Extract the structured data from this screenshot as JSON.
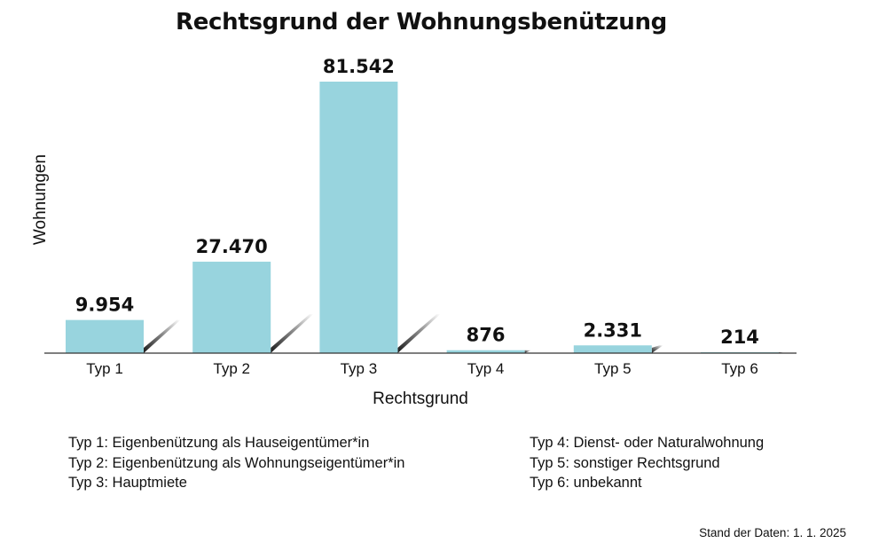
{
  "chart_data": {
    "type": "bar",
    "title": "Rechtsgrund der Wohnungsbenützung",
    "xlabel": "Rechtsgrund",
    "ylabel": "Wohnungen",
    "categories": [
      "Typ 1",
      "Typ 2",
      "Typ 3",
      "Typ 4",
      "Typ 5",
      "Typ 6"
    ],
    "values": [
      9954,
      27470,
      81542,
      876,
      2331,
      214
    ],
    "value_labels": [
      "9.954",
      "27.470",
      "81.542",
      "876",
      "2.331",
      "214"
    ],
    "ylim": [
      0,
      81542
    ],
    "grid": false,
    "bar_color": "#98d4de"
  },
  "legend": {
    "left": [
      "Typ 1: Eigenbenützung als Hauseigentümer*in",
      "Typ 2: Eigenbenützung als Wohnungseigentümer*in",
      "Typ 3: Hauptmiete"
    ],
    "right": [
      "Typ 4: Dienst- oder Naturalwohnung",
      "Typ 5: sonstiger Rechtsgrund",
      "Typ 6: unbekannt"
    ]
  },
  "footnote": "Stand der Daten: 1. 1. 2025"
}
